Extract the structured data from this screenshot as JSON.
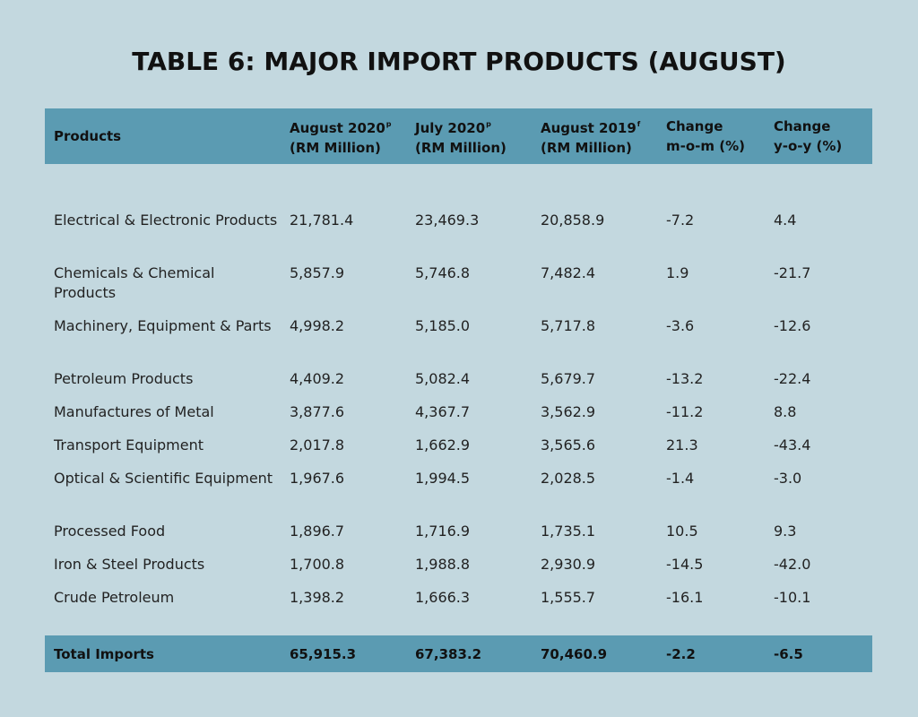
{
  "title": "TABLE 6: MAJOR IMPORT PRODUCTS (AUGUST)",
  "header": {
    "products": "Products",
    "col1_a": "August 2020",
    "col1_sup": "p",
    "col1_b": "(RM Million)",
    "col2_a": "July 2020",
    "col2_sup": "p",
    "col2_b": "(RM Million)",
    "col3_a": "August 2019",
    "col3_sup": "f",
    "col3_b": "(RM Million)",
    "col4_a": "Change",
    "col4_b": "m-o-m (%)",
    "col5_a": "Change",
    "col5_b": "y-o-y (%)"
  },
  "chart_data": {
    "type": "table",
    "title": "TABLE 6: MAJOR IMPORT PRODUCTS (AUGUST)",
    "columns": [
      "Products",
      "August 2020p (RM Million)",
      "July 2020p (RM Million)",
      "August 2019f (RM Million)",
      "Change m-o-m (%)",
      "Change y-o-y (%)"
    ],
    "rows": [
      {
        "product": "Electrical & Electronic Products",
        "aug2020": "21,781.4",
        "jul2020": "23,469.3",
        "aug2019": "20,858.9",
        "mom": "-7.2",
        "yoy": "4.4"
      },
      {
        "product": "Chemicals & Chemical Products",
        "aug2020": "5,857.9",
        "jul2020": "5,746.8",
        "aug2019": "7,482.4",
        "mom": "1.9",
        "yoy": "-21.7"
      },
      {
        "product": "Machinery, Equipment & Parts",
        "aug2020": "4,998.2",
        "jul2020": "5,185.0",
        "aug2019": "5,717.8",
        "mom": "-3.6",
        "yoy": "-12.6"
      },
      {
        "product": "Petroleum Products",
        "aug2020": "4,409.2",
        "jul2020": "5,082.4",
        "aug2019": "5,679.7",
        "mom": "-13.2",
        "yoy": "-22.4"
      },
      {
        "product": "Manufactures of Metal",
        "aug2020": "3,877.6",
        "jul2020": "4,367.7",
        "aug2019": "3,562.9",
        "mom": "-11.2",
        "yoy": "8.8"
      },
      {
        "product": "Transport Equipment",
        "aug2020": "2,017.8",
        "jul2020": "1,662.9",
        "aug2019": "3,565.6",
        "mom": "21.3",
        "yoy": "-43.4"
      },
      {
        "product": "Optical & Scientific Equipment",
        "aug2020": "1,967.6",
        "jul2020": "1,994.5",
        "aug2019": "2,028.5",
        "mom": "-1.4",
        "yoy": "-3.0"
      },
      {
        "product": "Processed Food",
        "aug2020": "1,896.7",
        "jul2020": "1,716.9",
        "aug2019": "1,735.1",
        "mom": "10.5",
        "yoy": "9.3"
      },
      {
        "product": "Iron & Steel Products",
        "aug2020": "1,700.8",
        "jul2020": "1,988.8",
        "aug2019": "2,930.9",
        "mom": "-14.5",
        "yoy": "-42.0"
      },
      {
        "product": "Crude Petroleum",
        "aug2020": "1,398.2",
        "jul2020": "1,666.3",
        "aug2019": "1,555.7",
        "mom": "-16.1",
        "yoy": "-10.1"
      }
    ],
    "total": {
      "product": "Total Imports",
      "aug2020": "65,915.3",
      "jul2020": "67,383.2",
      "aug2019": "70,460.9",
      "mom": "-2.2",
      "yoy": "-6.5"
    }
  },
  "colors": {
    "background": "#c3d8df",
    "header_band": "#5b9bb2"
  }
}
